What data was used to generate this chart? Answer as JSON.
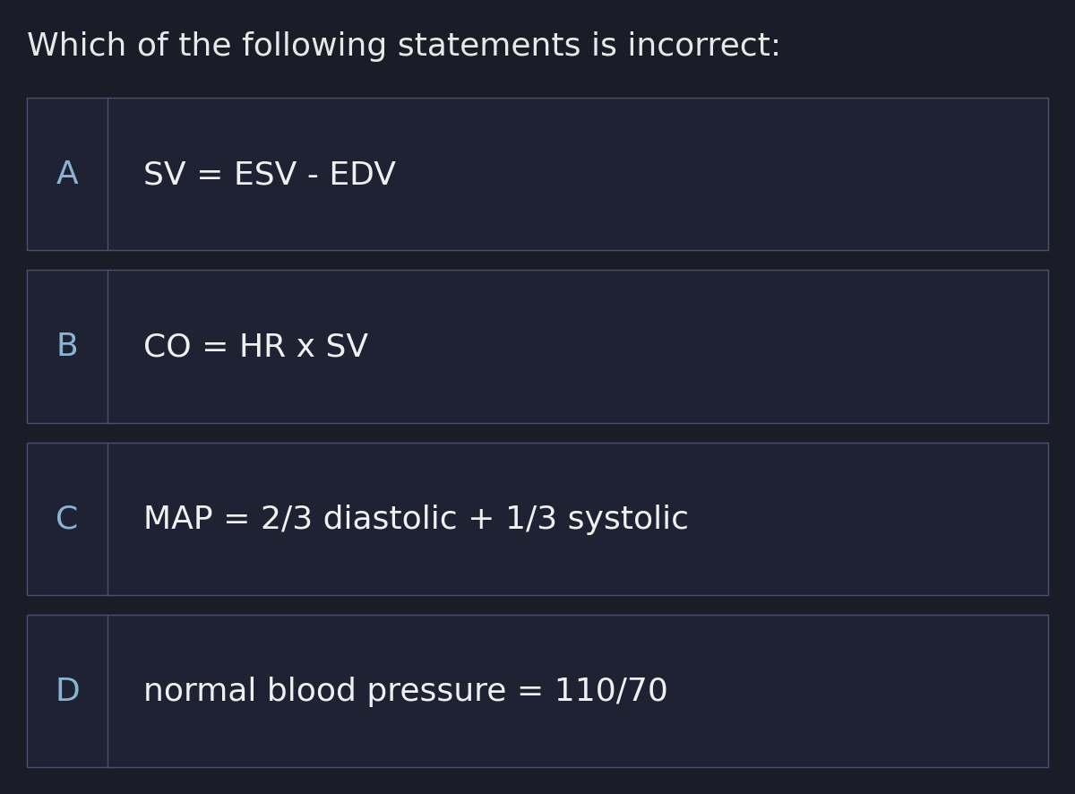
{
  "title": "Which of the following statements is incorrect:",
  "title_fontsize": 26,
  "title_color": "#e8e8e8",
  "background_color": "#1a1d27",
  "row_bg_color": "#1e2233",
  "row_border_color": "#4a5168",
  "letter_color": "#8ab4d4",
  "text_color": "#f0f0f0",
  "options": [
    {
      "letter": "A",
      "text": "SV = ESV - EDV"
    },
    {
      "letter": "B",
      "text": "CO = HR x SV"
    },
    {
      "letter": "C",
      "text": "MAP = 2/3 diastolic + 1/3 systolic"
    },
    {
      "letter": "D",
      "text": "normal blood pressure = 110/70"
    }
  ],
  "letter_fontsize": 26,
  "option_fontsize": 26,
  "fig_width": 12.0,
  "fig_height": 8.87,
  "dpi": 100
}
